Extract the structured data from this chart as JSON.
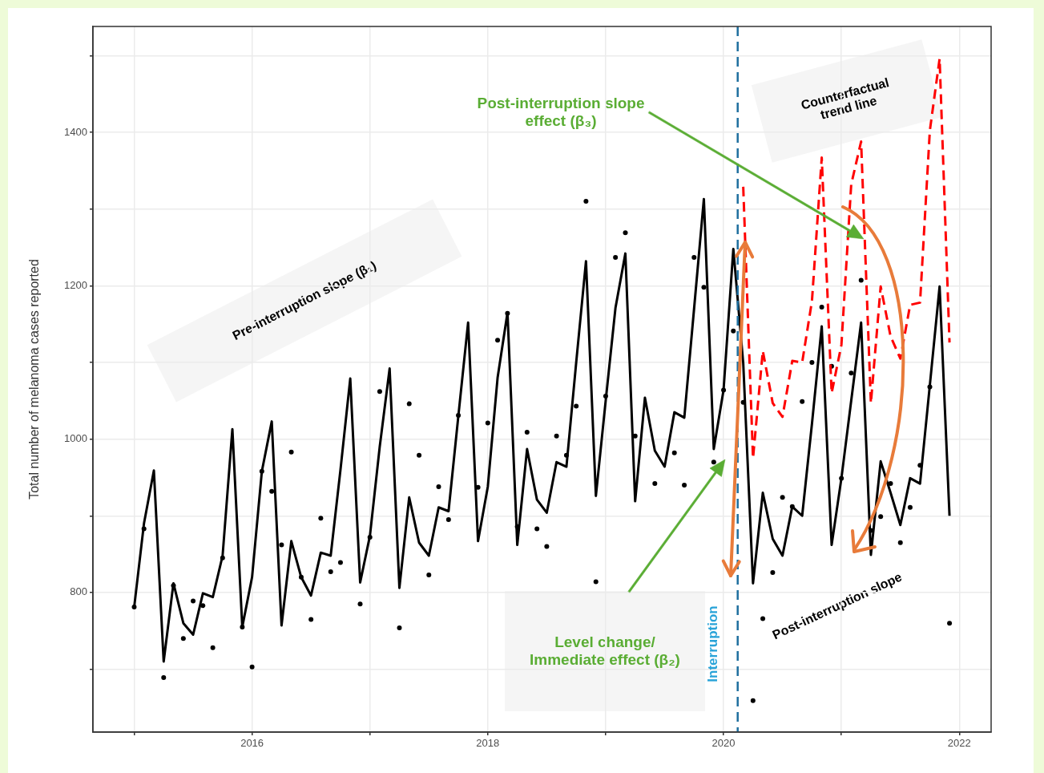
{
  "chart_data": {
    "type": "line",
    "ylabel": "Total number of melanoma cases reported",
    "xlim": [
      2014.65,
      2022.27
    ],
    "xticks": [
      {
        "value": 2015,
        "label": null
      },
      2016,
      {
        "value": 2017,
        "label": null
      },
      2018,
      {
        "value": 2019,
        "label": null
      },
      2020,
      {
        "value": 2021,
        "label": null
      },
      2022
    ],
    "ylim": [
      618,
      1538
    ],
    "yticks": [
      {
        "value": 700,
        "label": null
      },
      800,
      {
        "value": 900,
        "label": null
      },
      1000,
      {
        "value": 1100,
        "label": null
      },
      1200,
      {
        "value": 1300,
        "label": null
      },
      1400,
      {
        "value": 1500,
        "label": null
      }
    ],
    "grid": true,
    "legend": false,
    "series": [
      {
        "type": "line",
        "color": "#000000",
        "line_style": "solid",
        "marker": "none",
        "x": [
          2015,
          2015.083,
          2015.167,
          2015.25,
          2015.333,
          2015.417,
          2015.5,
          2015.583,
          2015.667,
          2015.75,
          2015.833,
          2015.917,
          2016,
          2016.083,
          2016.167,
          2016.25,
          2016.333,
          2016.417,
          2016.5,
          2016.583,
          2016.667,
          2016.75,
          2016.833,
          2016.917,
          2017,
          2017.083,
          2017.167,
          2017.25,
          2017.333,
          2017.417,
          2017.5,
          2017.583,
          2017.667,
          2017.75,
          2017.833,
          2017.917,
          2018,
          2018.083,
          2018.167,
          2018.25,
          2018.333,
          2018.417,
          2018.5,
          2018.583,
          2018.667,
          2018.75,
          2018.833,
          2018.917,
          2019,
          2019.083,
          2019.167,
          2019.25,
          2019.333,
          2019.417,
          2019.5,
          2019.583,
          2019.667,
          2019.75,
          2019.833,
          2019.917,
          2020,
          2020.083,
          2020.167,
          2020.25,
          2020.333,
          2020.417,
          2020.5,
          2020.583,
          2020.667,
          2020.75,
          2020.833,
          2020.917,
          2021,
          2021.083,
          2021.167,
          2021.25,
          2021.333,
          2021.417,
          2021.5,
          2021.583,
          2021.667,
          2021.75,
          2021.833,
          2021.917
        ],
        "values": [
          781,
          890,
          959,
          710,
          812,
          760,
          745,
          799,
          794,
          848,
          1013,
          755,
          820,
          958,
          1023,
          757,
          867,
          820,
          796,
          852,
          848,
          960,
          1079,
          813,
          874,
          990,
          1092,
          806,
          924,
          865,
          848,
          911,
          906,
          1030,
          1152,
          867,
          938,
          1080,
          1165,
          862,
          987,
          921,
          904,
          970,
          964,
          1100,
          1232,
          926,
          1050,
          1171,
          1242,
          919,
          1054,
          985,
          964,
          1035,
          1028,
          1170,
          1313,
          987,
          1064,
          1248,
          1099,
          812,
          930,
          870,
          848,
          912,
          900,
          1020,
          1147,
          862,
          949,
          1050,
          1152,
          849,
          971,
          930,
          888,
          949,
          942,
          1070,
          1199,
          900
        ]
      },
      {
        "type": "line",
        "color": "#ff0000",
        "line_style": "dashed",
        "marker": "none",
        "x": [
          2020.167,
          2020.25,
          2020.333,
          2020.417,
          2020.5,
          2020.583,
          2020.667,
          2020.75,
          2020.833,
          2020.917,
          2021,
          2021.083,
          2021.167,
          2021.25,
          2021.333,
          2021.417,
          2021.5,
          2021.583,
          2021.667,
          2021.75,
          2021.833,
          2021.917
        ],
        "values": [
          1329,
          975,
          1115,
          1047,
          1029,
          1102,
          1100,
          1180,
          1367,
          1060,
          1123,
          1332,
          1388,
          1047,
          1199,
          1134,
          1105,
          1175,
          1178,
          1402,
          1496,
          1126
        ]
      },
      {
        "type": "scatter",
        "color": "#000000",
        "marker": "circle",
        "x": [
          2015,
          2015.083,
          2015.25,
          2015.333,
          2015.417,
          2015.5,
          2015.583,
          2015.667,
          2015.75,
          2015.917,
          2016,
          2016.083,
          2016.167,
          2016.25,
          2016.333,
          2016.417,
          2016.5,
          2016.583,
          2016.667,
          2016.75,
          2016.917,
          2017,
          2017.083,
          2017.25,
          2017.333,
          2017.417,
          2017.5,
          2017.583,
          2017.667,
          2017.75,
          2017.917,
          2018,
          2018.083,
          2018.167,
          2018.25,
          2018.333,
          2018.417,
          2018.5,
          2018.583,
          2018.667,
          2018.75,
          2018.833,
          2018.917,
          2019,
          2019.083,
          2019.167,
          2019.25,
          2019.417,
          2019.583,
          2019.667,
          2019.75,
          2019.833,
          2019.917,
          2020,
          2020.083,
          2020.167,
          2020.25,
          2020.333,
          2020.417,
          2020.5,
          2020.583,
          2020.667,
          2020.75,
          2020.833,
          2020.917,
          2021,
          2021.083,
          2021.167,
          2021.25,
          2021.333,
          2021.417,
          2021.5,
          2021.583,
          2021.667,
          2021.75,
          2021.917
        ],
        "values": [
          781,
          883,
          689,
          809,
          740,
          789,
          783,
          728,
          845,
          755,
          703,
          958,
          932,
          862,
          983,
          820,
          765,
          897,
          827,
          839,
          785,
          872,
          1062,
          754,
          1046,
          979,
          823,
          938,
          895,
          1031,
          937,
          1021,
          1129,
          1164,
          886,
          1009,
          883,
          860,
          1004,
          979,
          1043,
          1310,
          814,
          1056,
          1237,
          1269,
          1004,
          942,
          982,
          940,
          1237,
          1198,
          970,
          1064,
          1141,
          1048,
          659,
          766,
          826,
          924,
          912,
          1049,
          1100,
          1172,
          1095,
          949,
          1086,
          1207,
          881,
          899,
          942,
          865,
          911,
          966,
          1068,
          760
        ]
      }
    ],
    "ref_lines": [
      {
        "axis": "x",
        "value": 2020.12,
        "label": "Interruption",
        "color": "#1f6f9f",
        "line_style": "dashed"
      }
    ],
    "annotations": [
      "Pre-interruption slope (β₁)",
      "Post-interruption slope effect (β₃)",
      "Counterfactual trend line",
      "Level change/ Immediate effect (β₂)",
      "Post-interruption slope"
    ]
  }
}
